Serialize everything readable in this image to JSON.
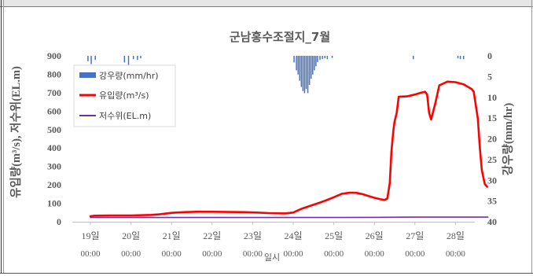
{
  "chart_data": {
    "type": "line",
    "title": "군남홍수조절지_7월",
    "xlabel": "일시",
    "ylabel_left": "유입량(m³/s), 저수위(EL.m)",
    "ylabel_right": "강우량(mm/hr)",
    "ylim_left": [
      0,
      900
    ],
    "ylim_right": [
      0,
      40
    ],
    "y_right_inverted": true,
    "yticks_left": [
      "0",
      "100",
      "200",
      "300",
      "400",
      "500",
      "600",
      "700",
      "800",
      "900"
    ],
    "yticks_right": [
      "0",
      "5",
      "10",
      "15",
      "20",
      "25",
      "30",
      "35",
      "40"
    ],
    "xlim": [
      0,
      9.5
    ],
    "xticks": [
      {
        "x": 0,
        "date": "19일",
        "time": "00:00"
      },
      {
        "x": 1,
        "date": "20일",
        "time": "00:00"
      },
      {
        "x": 2,
        "date": "21일",
        "time": "00:00"
      },
      {
        "x": 3,
        "date": "22일",
        "time": "00:00"
      },
      {
        "x": 4,
        "date": "23일",
        "time": "00:00"
      },
      {
        "x": 5,
        "date": "24일",
        "time": "00:00"
      },
      {
        "x": 6,
        "date": "25일",
        "time": "00:00"
      },
      {
        "x": 7,
        "date": "26일",
        "time": "00:00"
      },
      {
        "x": 8,
        "date": "27일",
        "time": "00:00"
      },
      {
        "x": 9,
        "date": "28일",
        "time": "00:00"
      }
    ],
    "legend_position": "top-left",
    "grid": false,
    "series": [
      {
        "name": "강우량(mm/hr)",
        "kind": "bar",
        "axis": "right",
        "color": "#4472c4",
        "points": [
          [
            -0.06,
            1.3
          ],
          [
            0.02,
            2.0
          ],
          [
            0.12,
            1.0
          ],
          [
            0.84,
            1.6
          ],
          [
            0.94,
            2.4
          ],
          [
            1.06,
            0.8
          ],
          [
            1.16,
            1.0
          ],
          [
            1.24,
            0.6
          ],
          [
            5.02,
            1.6
          ],
          [
            5.08,
            3.5
          ],
          [
            5.12,
            4.5
          ],
          [
            5.16,
            6.0
          ],
          [
            5.2,
            7.5
          ],
          [
            5.24,
            8.5
          ],
          [
            5.28,
            9.0
          ],
          [
            5.32,
            8.0
          ],
          [
            5.36,
            9.0
          ],
          [
            5.4,
            7.0
          ],
          [
            5.44,
            5.5
          ],
          [
            5.48,
            4.5
          ],
          [
            5.52,
            3.5
          ],
          [
            5.56,
            2.5
          ],
          [
            5.6,
            1.5
          ],
          [
            5.66,
            1.0
          ],
          [
            5.72,
            0.8
          ],
          [
            5.78,
            0.6
          ],
          [
            5.84,
            0.8
          ],
          [
            5.96,
            0.5
          ],
          [
            7.96,
            0.8
          ],
          [
            9.06,
            0.6
          ],
          [
            9.12,
            0.8
          ],
          [
            9.2,
            0.8
          ]
        ]
      },
      {
        "name": "유입량(m³/s)",
        "kind": "line",
        "axis": "left",
        "color": "#ff0000",
        "points": [
          [
            0,
            30
          ],
          [
            0.1,
            33
          ],
          [
            0.5,
            34
          ],
          [
            1.0,
            34
          ],
          [
            1.5,
            37
          ],
          [
            1.7,
            40
          ],
          [
            2.0,
            48
          ],
          [
            2.3,
            52
          ],
          [
            2.6,
            54
          ],
          [
            3.0,
            54
          ],
          [
            3.4,
            53
          ],
          [
            3.8,
            52
          ],
          [
            4.1,
            50
          ],
          [
            4.4,
            47
          ],
          [
            4.8,
            45
          ],
          [
            5.0,
            50
          ],
          [
            5.2,
            70
          ],
          [
            5.4,
            85
          ],
          [
            5.6,
            100
          ],
          [
            5.8,
            115
          ],
          [
            6.0,
            133
          ],
          [
            6.2,
            152
          ],
          [
            6.4,
            158
          ],
          [
            6.55,
            157
          ],
          [
            6.7,
            150
          ],
          [
            6.85,
            140
          ],
          [
            7.0,
            130
          ],
          [
            7.15,
            122
          ],
          [
            7.25,
            118
          ],
          [
            7.32,
            126
          ],
          [
            7.38,
            210
          ],
          [
            7.42,
            380
          ],
          [
            7.47,
            500
          ],
          [
            7.5,
            545
          ],
          [
            7.55,
            590
          ],
          [
            7.6,
            678
          ],
          [
            7.8,
            680
          ],
          [
            8.0,
            690
          ],
          [
            8.15,
            700
          ],
          [
            8.25,
            705
          ],
          [
            8.3,
            690
          ],
          [
            8.35,
            590
          ],
          [
            8.4,
            555
          ],
          [
            8.5,
            640
          ],
          [
            8.6,
            740
          ],
          [
            8.8,
            760
          ],
          [
            9.0,
            757
          ],
          [
            9.2,
            745
          ],
          [
            9.4,
            720
          ],
          [
            9.45,
            705
          ],
          [
            9.55,
            560
          ],
          [
            9.6,
            400
          ],
          [
            9.65,
            280
          ],
          [
            9.72,
            205
          ],
          [
            9.78,
            190
          ]
        ]
      },
      {
        "name": "저수위(EL.m)",
        "kind": "line",
        "axis": "left",
        "color": "#7030a0",
        "points": [
          [
            0,
            23
          ],
          [
            1,
            23
          ],
          [
            2,
            23
          ],
          [
            3,
            23
          ],
          [
            4,
            23
          ],
          [
            5,
            23
          ],
          [
            6,
            23
          ],
          [
            7,
            24
          ],
          [
            8,
            25
          ],
          [
            9,
            25
          ],
          [
            9.8,
            25
          ]
        ]
      }
    ]
  }
}
